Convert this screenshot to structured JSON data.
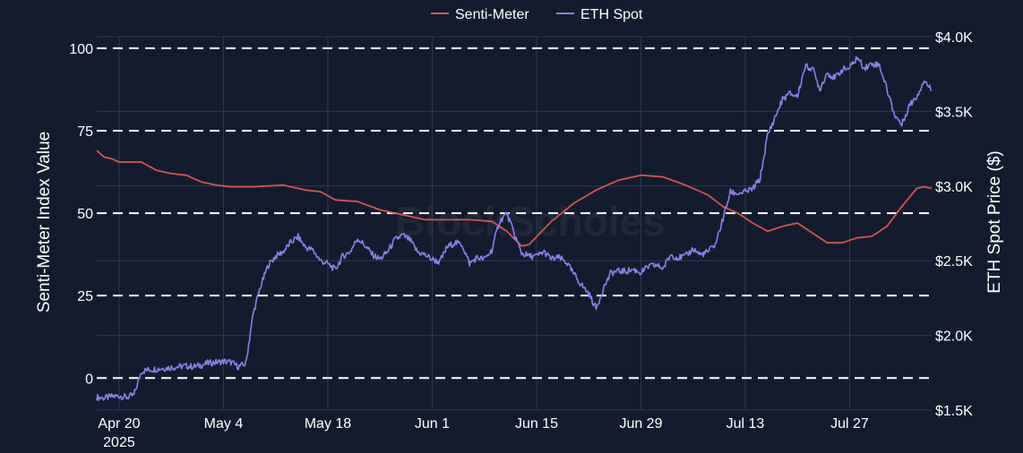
{
  "chart_data": {
    "type": "line",
    "legend_position": "top-center",
    "watermark": "BlockScholes",
    "x_axis": {
      "type": "date",
      "range": [
        "2025-04-17",
        "2025-08-07"
      ],
      "ticks": [
        {
          "date": "2025-04-20",
          "label": "Apr 20",
          "sublabel": "2025"
        },
        {
          "date": "2025-05-04",
          "label": "May 4",
          "sublabel": ""
        },
        {
          "date": "2025-05-18",
          "label": "May 18",
          "sublabel": ""
        },
        {
          "date": "2025-06-01",
          "label": "Jun 1",
          "sublabel": ""
        },
        {
          "date": "2025-06-15",
          "label": "Jun 15",
          "sublabel": ""
        },
        {
          "date": "2025-06-29",
          "label": "Jun 29",
          "sublabel": ""
        },
        {
          "date": "2025-07-13",
          "label": "Jul 13",
          "sublabel": ""
        },
        {
          "date": "2025-07-27",
          "label": "Jul 27",
          "sublabel": ""
        }
      ]
    },
    "y_left": {
      "label": "Senti-Meter Index Value",
      "range": [
        -9.7,
        103.5
      ],
      "ticks": [
        0,
        25,
        50,
        75,
        100
      ],
      "dashed_lines": [
        0,
        25,
        50,
        75,
        100
      ]
    },
    "y_right": {
      "label": "ETH Spot Price ($)",
      "range": [
        1500,
        4000
      ],
      "ticks": [
        {
          "value": 1500,
          "label": "$1.5K"
        },
        {
          "value": 2000,
          "label": "$2.0K"
        },
        {
          "value": 2500,
          "label": "$2.5K"
        },
        {
          "value": 3000,
          "label": "$3.0K"
        },
        {
          "value": 3500,
          "label": "$3.5K"
        },
        {
          "value": 4000,
          "label": "$4.0K"
        }
      ]
    },
    "series": [
      {
        "name": "Senti-Meter",
        "axis": "left",
        "color": "#d9534f",
        "points": [
          [
            "2025-04-17",
            69
          ],
          [
            "2025-04-18",
            67
          ],
          [
            "2025-04-19",
            66.5
          ],
          [
            "2025-04-20",
            65.5
          ],
          [
            "2025-04-22",
            65.5
          ],
          [
            "2025-04-23",
            65.5
          ],
          [
            "2025-04-25",
            63
          ],
          [
            "2025-04-27",
            62
          ],
          [
            "2025-04-29",
            61.5
          ],
          [
            "2025-05-01",
            59.5
          ],
          [
            "2025-05-03",
            58.5
          ],
          [
            "2025-05-05",
            58
          ],
          [
            "2025-05-08",
            58
          ],
          [
            "2025-05-12",
            58.5
          ],
          [
            "2025-05-15",
            57
          ],
          [
            "2025-05-17",
            56.5
          ],
          [
            "2025-05-19",
            54
          ],
          [
            "2025-05-22",
            53.5
          ],
          [
            "2025-05-25",
            51
          ],
          [
            "2025-05-28",
            49.5
          ],
          [
            "2025-05-31",
            48
          ],
          [
            "2025-06-03",
            48
          ],
          [
            "2025-06-06",
            48
          ],
          [
            "2025-06-09",
            47.5
          ],
          [
            "2025-06-11",
            44.5
          ],
          [
            "2025-06-13",
            40
          ],
          [
            "2025-06-14",
            40.5
          ],
          [
            "2025-06-17",
            47.5
          ],
          [
            "2025-06-20",
            53
          ],
          [
            "2025-06-23",
            57
          ],
          [
            "2025-06-26",
            60
          ],
          [
            "2025-06-29",
            61.5
          ],
          [
            "2025-07-02",
            61
          ],
          [
            "2025-07-05",
            58.5
          ],
          [
            "2025-07-08",
            55.5
          ],
          [
            "2025-07-10",
            52
          ],
          [
            "2025-07-12",
            50
          ],
          [
            "2025-07-14",
            47
          ],
          [
            "2025-07-16",
            44.5
          ],
          [
            "2025-07-18",
            46
          ],
          [
            "2025-07-20",
            47
          ],
          [
            "2025-07-22",
            44
          ],
          [
            "2025-07-24",
            41
          ],
          [
            "2025-07-26",
            41
          ],
          [
            "2025-07-28",
            42.5
          ],
          [
            "2025-07-30",
            43
          ],
          [
            "2025-08-01",
            46
          ],
          [
            "2025-08-03",
            52
          ],
          [
            "2025-08-05",
            57.5
          ],
          [
            "2025-08-06",
            58
          ],
          [
            "2025-08-07",
            57.5
          ]
        ]
      },
      {
        "name": "ETH Spot",
        "axis": "right",
        "color": "#8f7eee",
        "points": [
          [
            "2025-04-17",
            1585
          ],
          [
            "2025-04-18",
            1580
          ],
          [
            "2025-04-19",
            1590
          ],
          [
            "2025-04-20",
            1595
          ],
          [
            "2025-04-21",
            1585
          ],
          [
            "2025-04-22",
            1600
          ],
          [
            "2025-04-23",
            1760
          ],
          [
            "2025-04-24",
            1770
          ],
          [
            "2025-04-25",
            1775
          ],
          [
            "2025-04-26",
            1780
          ],
          [
            "2025-04-27",
            1785
          ],
          [
            "2025-04-28",
            1790
          ],
          [
            "2025-04-29",
            1795
          ],
          [
            "2025-04-30",
            1790
          ],
          [
            "2025-05-01",
            1800
          ],
          [
            "2025-05-02",
            1815
          ],
          [
            "2025-05-03",
            1820
          ],
          [
            "2025-05-04",
            1825
          ],
          [
            "2025-05-05",
            1820
          ],
          [
            "2025-05-06",
            1790
          ],
          [
            "2025-05-07",
            1810
          ],
          [
            "2025-05-08",
            2150
          ],
          [
            "2025-05-09",
            2330
          ],
          [
            "2025-05-10",
            2470
          ],
          [
            "2025-05-11",
            2530
          ],
          [
            "2025-05-12",
            2560
          ],
          [
            "2025-05-13",
            2620
          ],
          [
            "2025-05-14",
            2660
          ],
          [
            "2025-05-15",
            2590
          ],
          [
            "2025-05-16",
            2570
          ],
          [
            "2025-05-17",
            2500
          ],
          [
            "2025-05-18",
            2480
          ],
          [
            "2025-05-19",
            2440
          ],
          [
            "2025-05-20",
            2530
          ],
          [
            "2025-05-21",
            2560
          ],
          [
            "2025-05-22",
            2650
          ],
          [
            "2025-05-23",
            2600
          ],
          [
            "2025-05-24",
            2540
          ],
          [
            "2025-05-25",
            2510
          ],
          [
            "2025-05-26",
            2560
          ],
          [
            "2025-05-27",
            2640
          ],
          [
            "2025-05-28",
            2670
          ],
          [
            "2025-05-29",
            2640
          ],
          [
            "2025-05-30",
            2560
          ],
          [
            "2025-05-31",
            2540
          ],
          [
            "2025-06-01",
            2510
          ],
          [
            "2025-06-02",
            2490
          ],
          [
            "2025-06-03",
            2590
          ],
          [
            "2025-06-04",
            2620
          ],
          [
            "2025-06-05",
            2610
          ],
          [
            "2025-06-06",
            2480
          ],
          [
            "2025-06-07",
            2520
          ],
          [
            "2025-06-08",
            2510
          ],
          [
            "2025-06-09",
            2570
          ],
          [
            "2025-06-10",
            2760
          ],
          [
            "2025-06-11",
            2820
          ],
          [
            "2025-06-12",
            2680
          ],
          [
            "2025-06-13",
            2550
          ],
          [
            "2025-06-14",
            2530
          ],
          [
            "2025-06-15",
            2530
          ],
          [
            "2025-06-16",
            2560
          ],
          [
            "2025-06-17",
            2510
          ],
          [
            "2025-06-18",
            2520
          ],
          [
            "2025-06-19",
            2490
          ],
          [
            "2025-06-20",
            2410
          ],
          [
            "2025-06-21",
            2340
          ],
          [
            "2025-06-22",
            2280
          ],
          [
            "2025-06-23",
            2180
          ],
          [
            "2025-06-24",
            2320
          ],
          [
            "2025-06-25",
            2420
          ],
          [
            "2025-06-26",
            2430
          ],
          [
            "2025-06-27",
            2430
          ],
          [
            "2025-06-28",
            2440
          ],
          [
            "2025-06-29",
            2420
          ],
          [
            "2025-06-30",
            2460
          ],
          [
            "2025-07-01",
            2470
          ],
          [
            "2025-07-02",
            2450
          ],
          [
            "2025-07-03",
            2540
          ],
          [
            "2025-07-04",
            2520
          ],
          [
            "2025-07-05",
            2530
          ],
          [
            "2025-07-06",
            2580
          ],
          [
            "2025-07-07",
            2540
          ],
          [
            "2025-07-08",
            2560
          ],
          [
            "2025-07-09",
            2610
          ],
          [
            "2025-07-10",
            2780
          ],
          [
            "2025-07-11",
            2960
          ],
          [
            "2025-07-12",
            2950
          ],
          [
            "2025-07-13",
            2960
          ],
          [
            "2025-07-14",
            2980
          ],
          [
            "2025-07-15",
            3050
          ],
          [
            "2025-07-16",
            3340
          ],
          [
            "2025-07-17",
            3460
          ],
          [
            "2025-07-18",
            3580
          ],
          [
            "2025-07-19",
            3620
          ],
          [
            "2025-07-20",
            3600
          ],
          [
            "2025-07-21",
            3800
          ],
          [
            "2025-07-22",
            3790
          ],
          [
            "2025-07-23",
            3650
          ],
          [
            "2025-07-24",
            3760
          ],
          [
            "2025-07-25",
            3720
          ],
          [
            "2025-07-26",
            3780
          ],
          [
            "2025-07-27",
            3790
          ],
          [
            "2025-07-28",
            3860
          ],
          [
            "2025-07-29",
            3790
          ],
          [
            "2025-07-30",
            3820
          ],
          [
            "2025-07-31",
            3810
          ],
          [
            "2025-08-01",
            3650
          ],
          [
            "2025-08-02",
            3480
          ],
          [
            "2025-08-03",
            3410
          ],
          [
            "2025-08-04",
            3540
          ],
          [
            "2025-08-05",
            3600
          ],
          [
            "2025-08-06",
            3710
          ],
          [
            "2025-08-07",
            3640
          ]
        ]
      }
    ]
  }
}
